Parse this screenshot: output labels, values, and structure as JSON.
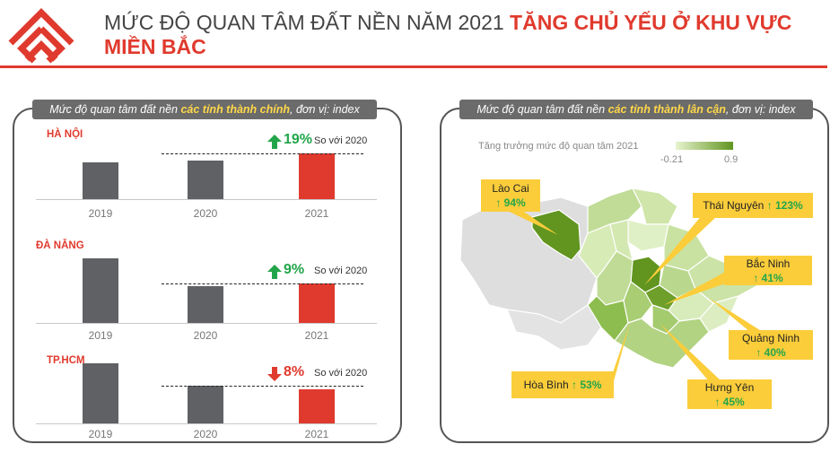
{
  "header": {
    "title_normal": "MỨC ĐỘ QUAN TÂM ĐẤT NỀN NĂM 2021",
    "title_bold": "TĂNG CHỦ YẾU Ở KHU VỰC MIỀN BẮC",
    "title_bold_line1": "TĂNG CHỦ YẾU Ở KHU VỰC",
    "title_bold_line2": "MIỀN BẮC"
  },
  "left_panel": {
    "header_pre": "Mức độ quan tâm đất nền ",
    "header_hl": "các tỉnh thành chính",
    "header_post": ", đơn vị: index"
  },
  "right_panel": {
    "header_pre": "Mức độ quan tâm đất nền ",
    "header_hl": "các tỉnh thành lân cận",
    "header_post": ", đơn vị: index",
    "legend_title": "Tăng trưởng mức độ quan tâm 2021",
    "legend_min": "-0.21",
    "legend_max": "0.9"
  },
  "chart_data": [
    {
      "type": "bar",
      "city": "HÀ NỘI",
      "categories": [
        "2019",
        "2020",
        "2021"
      ],
      "values": [
        0.82,
        0.86,
        1.02
      ],
      "change_text": "19%",
      "change_direction": "up",
      "compare_text": "So với 2020"
    },
    {
      "type": "bar",
      "city": "ĐÀ NẴNG",
      "categories": [
        "2019",
        "2020",
        "2021"
      ],
      "values": [
        1.44,
        0.81,
        0.88
      ],
      "change_text": "9%",
      "change_direction": "up",
      "compare_text": "So với 2020"
    },
    {
      "type": "bar",
      "city": "TP.HCM",
      "categories": [
        "2019",
        "2020",
        "2021"
      ],
      "values": [
        1.34,
        0.83,
        0.76
      ],
      "change_text": "8%",
      "change_direction": "down",
      "compare_text": "So với 2020"
    }
  ],
  "callouts": [
    {
      "name": "Lào Cai",
      "value": "↑ 94%"
    },
    {
      "name": "Thái Nguyên",
      "value": "↑ 123%"
    },
    {
      "name": "Bắc Ninh",
      "value": "↑ 41%"
    },
    {
      "name": "Quảng Ninh",
      "value": "↑ 40%"
    },
    {
      "name": "Hòa Bình",
      "value": "↑ 53%"
    },
    {
      "name": "Hưng Yên",
      "value": "↑ 45%"
    }
  ],
  "colors": {
    "accent": "#e03a2e",
    "bar_grey": "#5f6164",
    "up": "#22a54a",
    "callout": "#fbcd3a",
    "map_light": "#e7f3cf",
    "map_dark": "#61951f"
  }
}
